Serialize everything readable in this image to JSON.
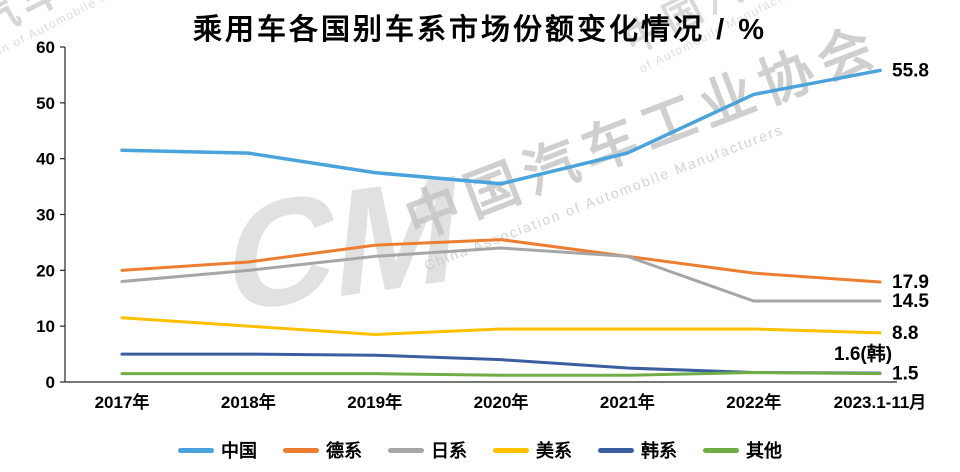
{
  "title": "乘用车各国别车系市场份额变化情况 / %",
  "watermark": {
    "logo_text": "CM",
    "topleft_cn": "汽车工业",
    "topleft_en": "ion of Automobile Manufa",
    "topright_cn": "中国汽车工业协会",
    "topright_en": "of Automobile Manufacture",
    "center_cn": "中国汽车工业协会",
    "center_en": "China Association of Automobile Manufacturers"
  },
  "chart_data": {
    "type": "line",
    "categories": [
      "2017年",
      "2018年",
      "2019年",
      "2020年",
      "2021年",
      "2022年",
      "2023.1-11月"
    ],
    "ylim": [
      0,
      60
    ],
    "yticks": [
      0,
      10,
      20,
      30,
      40,
      50,
      60
    ],
    "grid": false,
    "legend_position": "bottom",
    "series": [
      {
        "name": "中国",
        "color": "#4BA3DC",
        "width": 3.5,
        "values": [
          41.5,
          41,
          37.5,
          35.5,
          41,
          51.5,
          55.8
        ],
        "end_label": "55.8",
        "label_dx": 0,
        "label_dy": 0
      },
      {
        "name": "德系",
        "color": "#ED7D31",
        "width": 3,
        "values": [
          20,
          21.5,
          24.5,
          25.5,
          22.5,
          19.5,
          17.9
        ],
        "end_label": "17.9",
        "label_dx": 0,
        "label_dy": 0
      },
      {
        "name": "日系",
        "color": "#A6A6A6",
        "width": 3,
        "values": [
          18,
          20,
          22.5,
          24,
          22.5,
          14.5,
          14.5
        ],
        "end_label": "14.5",
        "label_dx": 0,
        "label_dy": 0
      },
      {
        "name": "美系",
        "color": "#FFC000",
        "width": 3,
        "values": [
          11.5,
          10,
          8.5,
          9.5,
          9.5,
          9.5,
          8.8
        ],
        "end_label": "8.8",
        "label_dx": 0,
        "label_dy": 0
      },
      {
        "name": "韩系",
        "color": "#3B5EA0",
        "width": 3,
        "values": [
          5,
          5,
          4.8,
          4,
          2.5,
          1.7,
          1.6
        ],
        "end_label": "1.6(韩)",
        "label_dx": -58,
        "label_dy": -19
      },
      {
        "name": "其他",
        "color": "#70AD47",
        "width": 3,
        "values": [
          1.5,
          1.5,
          1.5,
          1.2,
          1.2,
          1.7,
          1.5
        ],
        "end_label": "1.5",
        "label_dx": 0,
        "label_dy": 0
      }
    ]
  }
}
